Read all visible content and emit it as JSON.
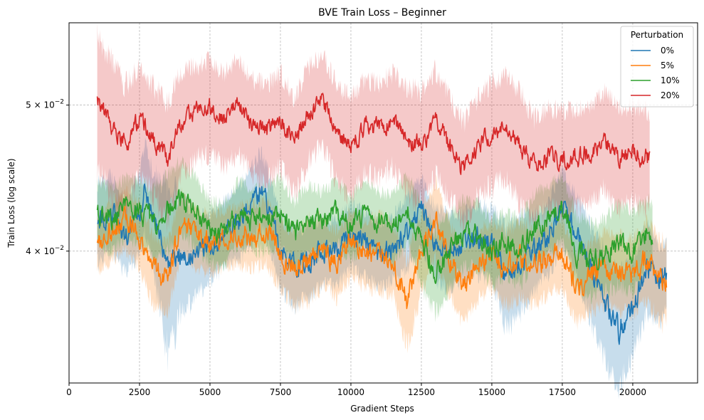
{
  "chart_data": {
    "type": "line",
    "title": "BVE Train Loss – Beginner",
    "xlabel": "Gradient Steps",
    "ylabel": "Train Loss (log scale)",
    "yscale": "log",
    "xlim": [
      0,
      22300
    ],
    "ylim": [
      0.0327,
      0.0567
    ],
    "grid": true,
    "legend": {
      "title": "Perturbation",
      "position": "top-right"
    },
    "x_ticks": [
      0,
      2500,
      5000,
      7500,
      10000,
      12500,
      15000,
      17500,
      20000
    ],
    "x_tick_labels": [
      "0",
      "2500",
      "5000",
      "7500",
      "10000",
      "12500",
      "15000",
      "17500",
      "20000"
    ],
    "y_ticks": [
      0.04,
      0.05
    ],
    "y_tick_labels": [
      {
        "mantissa": "4",
        "base": "10",
        "exp": "−2"
      },
      {
        "mantissa": "5",
        "base": "10",
        "exp": "−2"
      }
    ],
    "series": [
      {
        "name": "0%",
        "color": "#1f77b4",
        "x": [
          1000,
          1500,
          2000,
          2500,
          2700,
          3000,
          3500,
          4000,
          4500,
          5000,
          5500,
          6000,
          6500,
          6800,
          7000,
          7500,
          8000,
          8500,
          9000,
          9500,
          10000,
          10500,
          11000,
          11500,
          12000,
          12500,
          13000,
          13500,
          14000,
          14500,
          15000,
          15500,
          16000,
          16500,
          17000,
          17500,
          18000,
          18500,
          19000,
          19500,
          20000,
          20500,
          21000,
          21200
        ],
        "y": [
          0.0418,
          0.0425,
          0.0408,
          0.0425,
          0.0442,
          0.0418,
          0.0392,
          0.04,
          0.0398,
          0.0402,
          0.0412,
          0.0418,
          0.043,
          0.044,
          0.0432,
          0.04,
          0.039,
          0.0395,
          0.04,
          0.04,
          0.041,
          0.0405,
          0.0398,
          0.0402,
          0.0412,
          0.0425,
          0.0405,
          0.04,
          0.0403,
          0.0408,
          0.0405,
          0.0385,
          0.0393,
          0.04,
          0.0408,
          0.0428,
          0.041,
          0.0388,
          0.037,
          0.0355,
          0.0368,
          0.039,
          0.038,
          0.0388
        ],
        "band": [
          0.0025,
          0.0024,
          0.0022,
          0.0025,
          0.0028,
          0.0032,
          0.005,
          0.0035,
          0.0025,
          0.002,
          0.0022,
          0.0022,
          0.0025,
          0.0025,
          0.0024,
          0.0022,
          0.0022,
          0.0022,
          0.002,
          0.002,
          0.002,
          0.002,
          0.002,
          0.002,
          0.0022,
          0.0022,
          0.0022,
          0.0022,
          0.0022,
          0.0022,
          0.0022,
          0.003,
          0.003,
          0.0024,
          0.0022,
          0.0025,
          0.0025,
          0.0028,
          0.003,
          0.003,
          0.0028,
          0.0025,
          0.0022,
          0.002
        ]
      },
      {
        "name": "5%",
        "color": "#ff7f0e",
        "x": [
          1000,
          1500,
          2000,
          2500,
          3000,
          3500,
          4000,
          4500,
          5000,
          5500,
          6000,
          6500,
          7000,
          7500,
          8000,
          8500,
          9000,
          9500,
          10000,
          10500,
          11000,
          11500,
          12000,
          12500,
          13000,
          13500,
          14000,
          14500,
          15000,
          15500,
          16000,
          16500,
          17000,
          17500,
          18000,
          18500,
          19000,
          19500,
          20000,
          20500,
          21000,
          21200
        ],
        "y": [
          0.0405,
          0.0412,
          0.042,
          0.041,
          0.0388,
          0.0385,
          0.0418,
          0.0408,
          0.0405,
          0.0408,
          0.041,
          0.041,
          0.0412,
          0.0398,
          0.039,
          0.0395,
          0.04,
          0.0392,
          0.0405,
          0.0398,
          0.04,
          0.0395,
          0.037,
          0.04,
          0.042,
          0.0395,
          0.038,
          0.0392,
          0.0398,
          0.039,
          0.0395,
          0.039,
          0.0395,
          0.0398,
          0.0378,
          0.0385,
          0.039,
          0.0388,
          0.0385,
          0.0395,
          0.0382,
          0.0383
        ],
        "band": [
          0.0018,
          0.0018,
          0.002,
          0.002,
          0.0022,
          0.002,
          0.002,
          0.0018,
          0.0018,
          0.0018,
          0.0018,
          0.002,
          0.002,
          0.002,
          0.0022,
          0.0025,
          0.002,
          0.002,
          0.002,
          0.002,
          0.0022,
          0.0022,
          0.0025,
          0.0025,
          0.0025,
          0.0022,
          0.0022,
          0.002,
          0.002,
          0.0022,
          0.0022,
          0.0022,
          0.002,
          0.002,
          0.002,
          0.002,
          0.0022,
          0.0022,
          0.0022,
          0.0025,
          0.0025,
          0.0022
        ]
      },
      {
        "name": "10%",
        "color": "#2ca02c",
        "x": [
          1000,
          1500,
          2000,
          2500,
          3000,
          3500,
          4000,
          4500,
          5000,
          5500,
          6000,
          6500,
          7000,
          7500,
          8000,
          8500,
          9000,
          9500,
          10000,
          10500,
          11000,
          11500,
          12000,
          12500,
          13000,
          13500,
          14000,
          14500,
          15000,
          15500,
          16000,
          16500,
          17000,
          17500,
          18000,
          18500,
          19000,
          19500,
          20000,
          20500,
          20700
        ],
        "y": [
          0.0425,
          0.042,
          0.0428,
          0.0425,
          0.0418,
          0.0425,
          0.0435,
          0.0425,
          0.0412,
          0.041,
          0.0425,
          0.042,
          0.042,
          0.0425,
          0.041,
          0.042,
          0.0418,
          0.0425,
          0.0415,
          0.0425,
          0.0418,
          0.0415,
          0.0428,
          0.0405,
          0.0388,
          0.04,
          0.0412,
          0.041,
          0.04,
          0.0405,
          0.04,
          0.0415,
          0.042,
          0.0428,
          0.04,
          0.0395,
          0.0398,
          0.0405,
          0.04,
          0.0412,
          0.041
        ],
        "band": [
          0.002,
          0.002,
          0.002,
          0.002,
          0.0022,
          0.0025,
          0.0025,
          0.0022,
          0.002,
          0.002,
          0.002,
          0.002,
          0.002,
          0.0022,
          0.0022,
          0.0022,
          0.002,
          0.002,
          0.002,
          0.002,
          0.002,
          0.002,
          0.0022,
          0.0025,
          0.0025,
          0.0022,
          0.0022,
          0.002,
          0.002,
          0.002,
          0.002,
          0.0022,
          0.0022,
          0.0022,
          0.0022,
          0.0022,
          0.0022,
          0.0025,
          0.0025,
          0.0022,
          0.002
        ]
      },
      {
        "name": "20%",
        "color": "#d62728",
        "x": [
          1000,
          1500,
          2000,
          2500,
          3000,
          3500,
          4000,
          4500,
          5000,
          5500,
          6000,
          6500,
          7000,
          7500,
          8000,
          8500,
          9000,
          9500,
          10000,
          10500,
          11000,
          11500,
          12000,
          12500,
          13000,
          13500,
          14000,
          14500,
          15000,
          15500,
          16000,
          16500,
          17000,
          17500,
          18000,
          18500,
          19000,
          19500,
          20000,
          20500,
          20600
        ],
        "y": [
          0.0505,
          0.0485,
          0.047,
          0.049,
          0.0475,
          0.046,
          0.0488,
          0.0495,
          0.05,
          0.049,
          0.05,
          0.0485,
          0.048,
          0.049,
          0.047,
          0.0495,
          0.0505,
          0.048,
          0.047,
          0.0485,
          0.0482,
          0.049,
          0.0475,
          0.047,
          0.0488,
          0.047,
          0.0452,
          0.047,
          0.048,
          0.0485,
          0.047,
          0.0455,
          0.0462,
          0.046,
          0.0462,
          0.0465,
          0.0475,
          0.0462,
          0.0465,
          0.0462,
          0.046
        ],
        "band": [
          0.005,
          0.005,
          0.0045,
          0.004,
          0.004,
          0.004,
          0.004,
          0.0035,
          0.0035,
          0.0035,
          0.0035,
          0.0035,
          0.0035,
          0.0035,
          0.0035,
          0.0035,
          0.0035,
          0.0035,
          0.0035,
          0.0035,
          0.0035,
          0.0035,
          0.004,
          0.004,
          0.004,
          0.0035,
          0.0035,
          0.0035,
          0.0038,
          0.004,
          0.004,
          0.0035,
          0.0035,
          0.0035,
          0.0035,
          0.0035,
          0.0035,
          0.0035,
          0.0035,
          0.0035,
          0.0035
        ]
      }
    ]
  }
}
